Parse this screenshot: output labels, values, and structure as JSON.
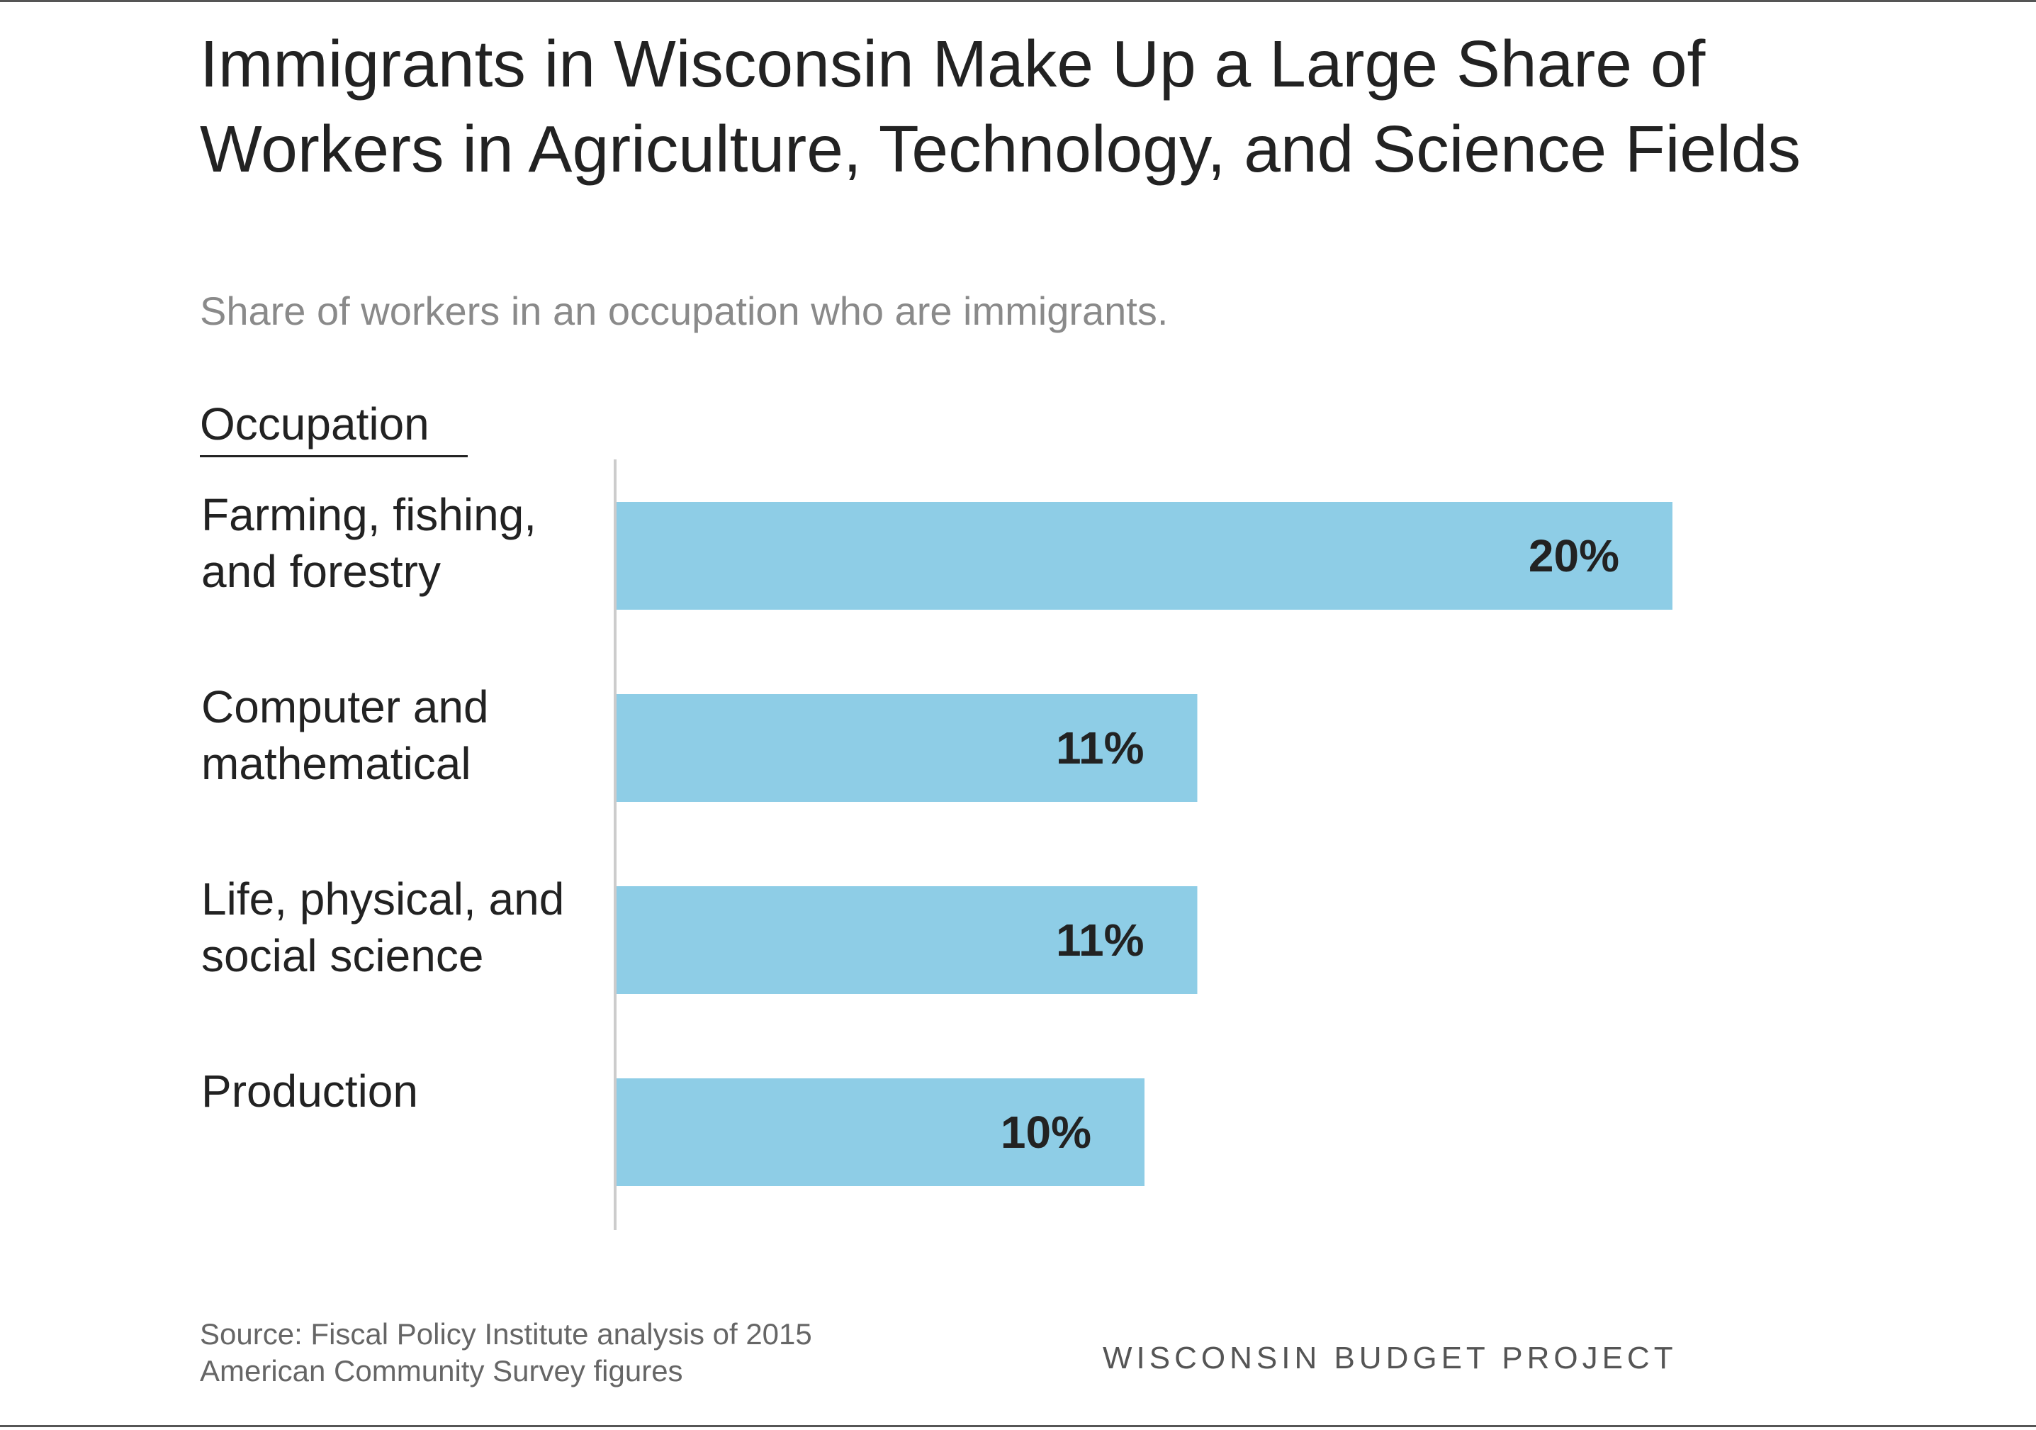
{
  "title": "Immigrants in Wisconsin Make Up a Large Share of Workers in Agriculture, Technology, and Science Fields",
  "subtitle": "Share of workers in an occupation who are immigrants.",
  "column_header": "Occupation",
  "source": "Source: Fiscal Policy Institute analysis of 2015 American Community Survey figures",
  "brand": "WISCONSIN BUDGET PROJECT",
  "colors": {
    "bar": "#8ecde6",
    "axis": "#cccccc",
    "text": "#222222"
  },
  "chart_data": {
    "type": "bar",
    "orientation": "horizontal",
    "title": "Immigrants in Wisconsin Make Up a Large Share of Workers in Agriculture, Technology, and Science Fields",
    "subtitle": "Share of workers in an occupation who are immigrants.",
    "xlabel": "",
    "ylabel": "Occupation",
    "categories": [
      [
        "Farming, fishing,",
        "and forestry"
      ],
      [
        "Computer and",
        "mathematical"
      ],
      [
        "Life, physical, and",
        "social science"
      ],
      [
        "Production"
      ]
    ],
    "values": [
      20,
      11,
      11,
      10
    ],
    "value_labels": [
      "20%",
      "11%",
      "11%",
      "10%"
    ],
    "xlim": [
      0,
      21.5
    ],
    "grid": false,
    "legend": "none"
  }
}
